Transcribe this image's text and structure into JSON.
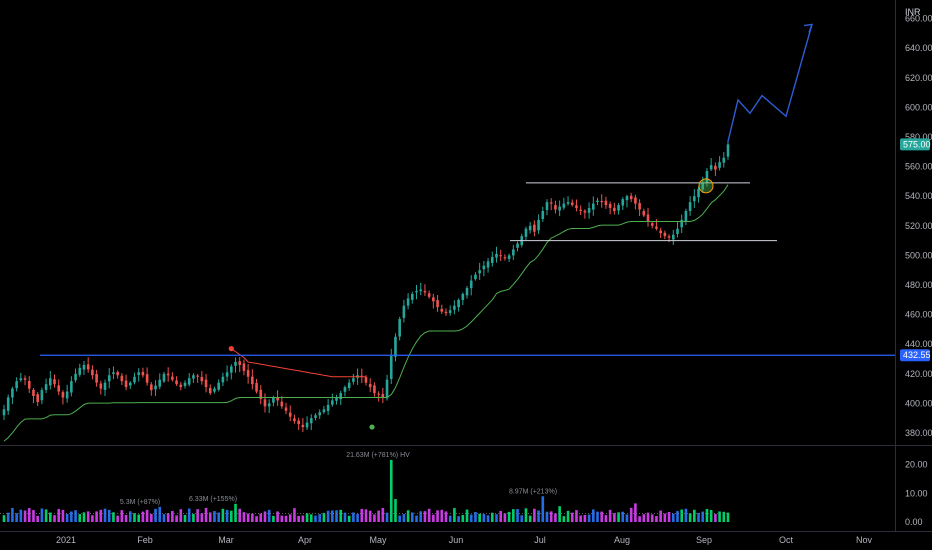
{
  "chart_data": {
    "type": "candlestick",
    "currency": "INR",
    "last_price": "575.00",
    "resistance_level": "432.55",
    "colors": {
      "up": "#26a69a",
      "down": "#ef5350",
      "trend_line": "#2962ff",
      "stop_up": "#4caf50",
      "stop_down": "#f44336",
      "projection": "#2f5cd6",
      "range_lines": "#d1d4dc",
      "vol_up": "#00e676",
      "vol_down": "#e040fb",
      "vol_alt": "#2979ff"
    },
    "price_axis": {
      "min": 370,
      "max": 650,
      "ticks": [
        "380.00",
        "400.00",
        "420.00",
        "440.00",
        "460.00",
        "480.00",
        "500.00",
        "520.00",
        "540.00",
        "560.00",
        "580.00",
        "600.00",
        "620.00",
        "640.00",
        "660.00"
      ]
    },
    "volume_axis": {
      "min": 0,
      "max": 25,
      "ticks": [
        "0.00",
        "10.00",
        "20.00"
      ]
    },
    "x_axis": {
      "labels": [
        "2021",
        "Feb",
        "Mar",
        "Apr",
        "May",
        "Jun",
        "Jul",
        "Aug",
        "Sep",
        "Oct",
        "Nov"
      ]
    },
    "annotations": [
      {
        "text": "5.3M (+87%)"
      },
      {
        "text": "6.33M (+155%)"
      },
      {
        "text": "21.63M (+781%) HV"
      },
      {
        "text": "8.97M (+213%)"
      }
    ],
    "range_box": {
      "top": 549,
      "bottom": 510
    },
    "projection_path": [
      577,
      605,
      596,
      608,
      594,
      656
    ],
    "close_series": [
      396,
      404,
      410,
      415,
      417,
      416,
      410,
      405,
      401,
      409,
      413,
      417,
      413,
      408,
      404,
      408,
      415,
      420,
      424,
      426,
      423,
      419,
      414,
      410,
      414,
      419,
      421,
      419,
      415,
      411,
      414,
      418,
      421,
      419,
      414,
      409,
      412,
      416,
      420,
      419,
      416,
      413,
      411,
      414,
      417,
      419,
      418,
      415,
      411,
      407,
      410,
      414,
      418,
      421,
      425,
      428,
      426,
      422,
      418,
      413,
      408,
      403,
      398,
      400,
      404,
      402,
      398,
      395,
      391,
      388,
      386,
      384,
      387,
      390,
      392,
      394,
      396,
      399,
      402,
      404,
      407,
      411,
      414,
      417,
      419,
      418,
      414,
      411,
      407,
      406,
      404,
      416,
      432,
      445,
      457,
      466,
      471,
      474,
      476,
      477,
      475,
      472,
      469,
      465,
      462,
      461,
      463,
      466,
      470,
      474,
      478,
      483,
      487,
      490,
      493,
      496,
      499,
      501,
      500,
      498,
      500,
      504,
      508,
      513,
      518,
      520,
      516,
      524,
      530,
      536,
      535,
      531,
      533,
      535,
      536,
      534,
      532,
      530,
      529,
      532,
      535,
      537,
      536,
      534,
      532,
      530,
      534,
      538,
      540,
      538,
      535,
      531,
      527,
      523,
      520,
      518,
      515,
      513,
      512,
      514,
      518,
      524,
      530,
      536,
      540,
      545,
      549,
      557,
      561,
      558,
      563,
      566,
      575
    ]
  }
}
